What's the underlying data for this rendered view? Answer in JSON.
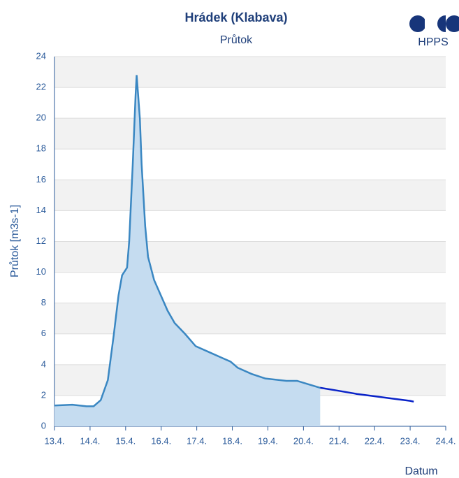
{
  "chart_data": {
    "type": "line",
    "title": "Hrádek (Klabava)",
    "subtitle": "Průtok",
    "logo": "HPPS",
    "ylabel": "Průtok [m3s-1]",
    "xlabel": "Datum",
    "xlim": [
      13,
      24
    ],
    "xticks": [
      {
        "value": 13,
        "label": "13.4."
      },
      {
        "value": 14,
        "label": "14.4."
      },
      {
        "value": 15,
        "label": "15.4."
      },
      {
        "value": 16,
        "label": "16.4."
      },
      {
        "value": 17,
        "label": "17.4."
      },
      {
        "value": 18,
        "label": "18.4."
      },
      {
        "value": 19,
        "label": "19.4."
      },
      {
        "value": 20,
        "label": "20.4."
      },
      {
        "value": 21,
        "label": "21.4."
      },
      {
        "value": 22,
        "label": "22.4."
      },
      {
        "value": 23,
        "label": "23.4."
      },
      {
        "value": 24,
        "label": "24.4."
      }
    ],
    "ylim": [
      0,
      24
    ],
    "yticks": [
      0,
      2,
      4,
      6,
      8,
      10,
      12,
      14,
      16,
      18,
      20,
      22,
      24
    ],
    "grid": true,
    "series": [
      {
        "color": "#3a87c2",
        "area": "#c5dcf0",
        "x": [
          13,
          13.5,
          13.9,
          14.1,
          14.3,
          14.5,
          14.67,
          14.8,
          14.9,
          15.04,
          15.1,
          15.2,
          15.28,
          15.31,
          15.4,
          15.45,
          15.55,
          15.63,
          15.8,
          15.99,
          16.18,
          16.38,
          16.67,
          16.97,
          17.36,
          17.75,
          17.95,
          18.15,
          18.54,
          18.93,
          19.52,
          19.82,
          20.11,
          20.47
        ],
        "values": [
          1.35,
          1.4,
          1.3,
          1.3,
          1.7,
          3,
          6,
          8.5,
          9.8,
          10.3,
          12,
          17,
          21.5,
          22.8,
          20,
          17,
          13,
          11,
          9.5,
          8.5,
          7.5,
          6.7,
          6,
          5.2,
          4.8,
          4.4,
          4.2,
          3.8,
          3.4,
          3.1,
          2.95,
          2.95,
          2.75,
          2.5
        ]
      },
      {
        "color": "#0a23c8",
        "x": [
          20.47,
          21,
          21.5,
          22,
          22.5,
          23,
          23.1
        ],
        "values": [
          2.5,
          2.3,
          2.1,
          1.95,
          1.8,
          1.65,
          1.6
        ]
      }
    ]
  }
}
